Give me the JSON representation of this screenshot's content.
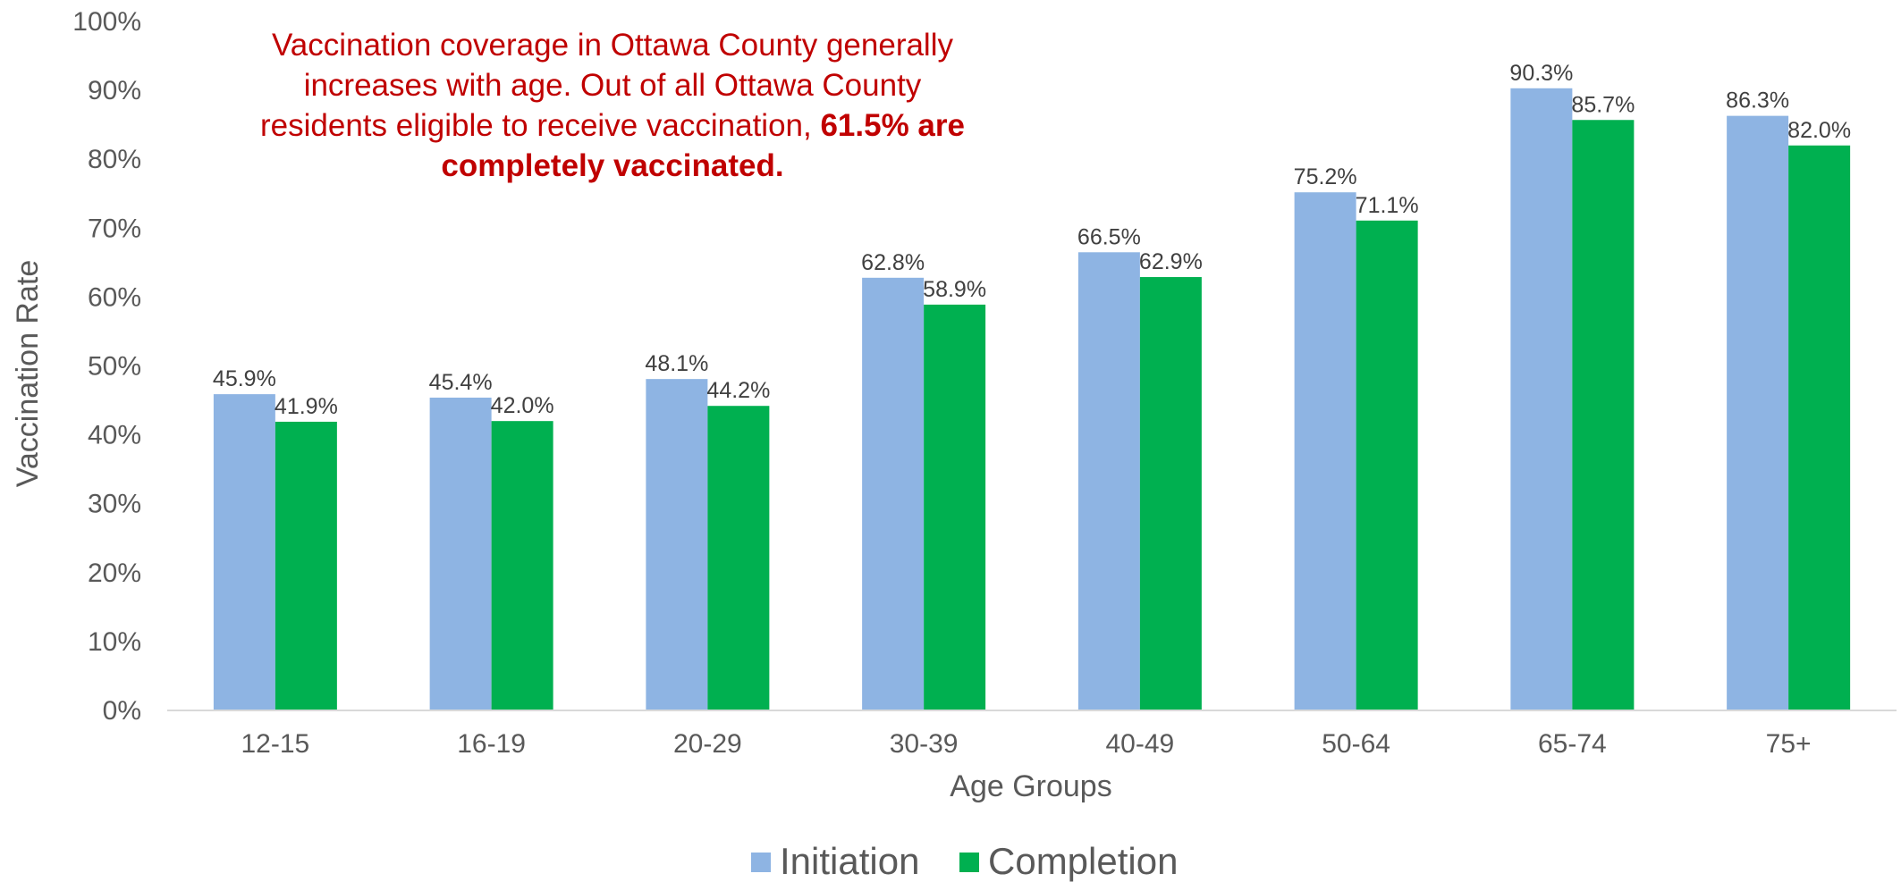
{
  "chart_data": {
    "type": "bar",
    "title": "",
    "xlabel": "Age Groups",
    "ylabel": "Vaccination Rate",
    "ylim": [
      0,
      100
    ],
    "y_ticks": [
      "0%",
      "10%",
      "20%",
      "30%",
      "40%",
      "50%",
      "60%",
      "70%",
      "80%",
      "90%",
      "100%"
    ],
    "categories": [
      "12-15",
      "16-19",
      "20-29",
      "30-39",
      "40-49",
      "50-64",
      "65-74",
      "75+"
    ],
    "series": [
      {
        "name": "Initiation",
        "color": "#8eb4e3",
        "values": [
          45.9,
          45.4,
          48.1,
          62.8,
          66.5,
          75.2,
          90.3,
          86.3
        ],
        "labels": [
          "45.9%",
          "45.4%",
          "48.1%",
          "62.8%",
          "66.5%",
          "75.2%",
          "90.3%",
          "86.3%"
        ]
      },
      {
        "name": "Completion",
        "color": "#00b050",
        "values": [
          41.9,
          42.0,
          44.2,
          58.9,
          62.9,
          71.1,
          85.7,
          82.0
        ],
        "labels": [
          "41.9%",
          "42.0%",
          "44.2%",
          "58.9%",
          "62.9%",
          "71.1%",
          "85.7%",
          "82.0%"
        ]
      }
    ],
    "grid": false,
    "legend_position": "bottom",
    "annotation": {
      "text_normal": "Vaccination coverage in Ottawa County generally increases with age. Out of all Ottawa County residents eligible to receive vaccination, ",
      "text_bold": "61.5% are completely vaccinated.",
      "color": "#c00000"
    }
  }
}
